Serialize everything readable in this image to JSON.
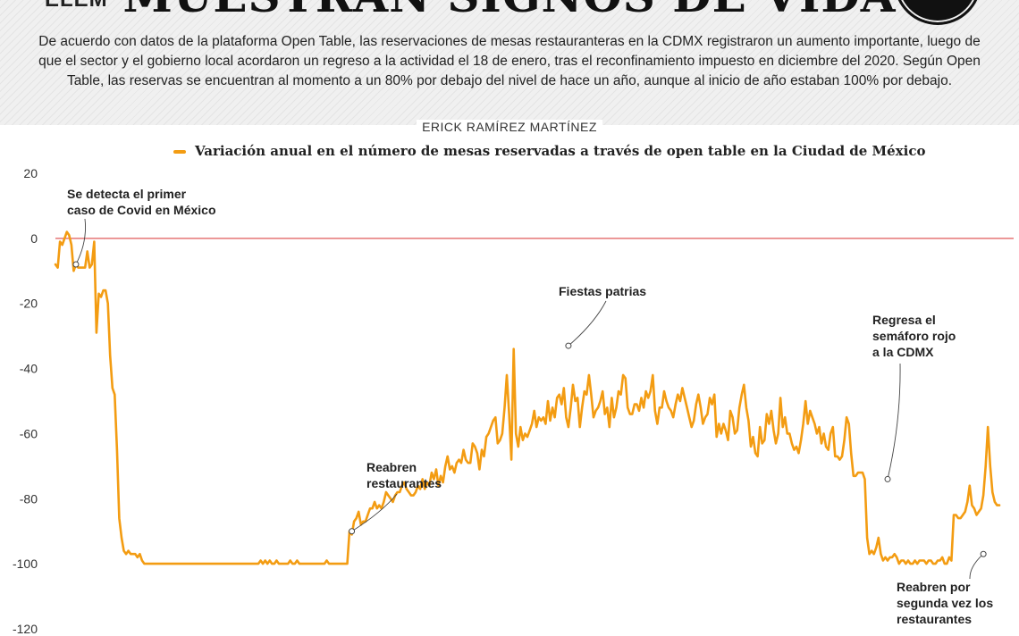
{
  "header": {
    "logo": "ELEM",
    "headline": "MUESTRAN SIGNOS DE VIDA",
    "intro": "De acuerdo con datos de la plataforma Open Table, las reservaciones de mesas restauranteras en la CDMX registraron un aumento importante, luego de que el sector y el gobierno local acordaron un regreso a la actividad el 18 de enero, tras el reconfinamiento impuesto en diciembre del 2020. Según Open Table, las reservas se encuentran al momento a un 80% por debajo del nivel de hace un año, aunque al inicio de año estaban 100% por debajo.",
    "author": "ERICK RAMÍREZ MARTÍNEZ"
  },
  "colors": {
    "line": "#f39c12",
    "zero_line": "#e05a5a",
    "background": "#ffffff",
    "header_band": "#f0f0f0"
  },
  "chart_data": {
    "type": "line",
    "title": "",
    "xlabel": "",
    "ylabel": "",
    "ylim": [
      -120,
      20
    ],
    "yticks": [
      20,
      0,
      -20,
      -40,
      -60,
      -80,
      -100,
      -120
    ],
    "grid": false,
    "reference_line": 0,
    "legend": "top",
    "series": [
      {
        "name": "Variación anual en el número de mesas reservadas a través de open table en la Ciudad de México",
        "values": [
          -8,
          -9,
          -1,
          -2,
          0,
          2,
          1,
          -2,
          -10,
          -8,
          -9,
          -9,
          -9,
          -9,
          -4,
          -9,
          -8,
          -1,
          -29,
          -17,
          -18,
          -16,
          -16,
          -20,
          -36,
          -46,
          -48,
          -65,
          -86,
          -92,
          -96,
          -97,
          -96,
          -97,
          -97,
          -97,
          -98,
          -97,
          -99,
          -100,
          -100,
          -100,
          -100,
          -100,
          -100,
          -100,
          -100,
          -100,
          -100,
          -100,
          -100,
          -100,
          -100,
          -100,
          -100,
          -100,
          -100,
          -100,
          -100,
          -100,
          -100,
          -100,
          -100,
          -100,
          -100,
          -100,
          -100,
          -100,
          -100,
          -100,
          -100,
          -100,
          -100,
          -100,
          -100,
          -100,
          -100,
          -100,
          -100,
          -100,
          -100,
          -100,
          -100,
          -100,
          -100,
          -100,
          -100,
          -100,
          -100,
          -100,
          -99,
          -100,
          -99,
          -100,
          -99,
          -100,
          -100,
          -99,
          -100,
          -100,
          -100,
          -100,
          -100,
          -99,
          -100,
          -100,
          -99,
          -100,
          -100,
          -100,
          -100,
          -100,
          -100,
          -100,
          -100,
          -100,
          -100,
          -100,
          -100,
          -99,
          -100,
          -100,
          -100,
          -100,
          -100,
          -100,
          -100,
          -100,
          -100,
          -90,
          -91,
          -87,
          -86,
          -84,
          -88,
          -87,
          -87,
          -85,
          -83,
          -83,
          -81,
          -83,
          -82,
          -83,
          -81,
          -78,
          -79,
          -80,
          -81,
          -79,
          -78,
          -78,
          -76,
          -75,
          -77,
          -78,
          -79,
          -79,
          -78,
          -76,
          -77,
          -74,
          -77,
          -75,
          -76,
          -72,
          -74,
          -71,
          -76,
          -73,
          -75,
          -70,
          -67,
          -71,
          -70,
          -72,
          -69,
          -68,
          -69,
          -65,
          -68,
          -69,
          -69,
          -63,
          -64,
          -66,
          -71,
          -65,
          -67,
          -61,
          -60,
          -58,
          -56,
          -55,
          -63,
          -62,
          -60,
          -52,
          -42,
          -54,
          -68,
          -34,
          -60,
          -64,
          -58,
          -62,
          -60,
          -61,
          -59,
          -57,
          -53,
          -58,
          -55,
          -56,
          -55,
          -57,
          -50,
          -56,
          -52,
          -55,
          -49,
          -48,
          -51,
          -46,
          -55,
          -58,
          -52,
          -45,
          -50,
          -49,
          -58,
          -52,
          -47,
          -48,
          -42,
          -48,
          -55,
          -53,
          -52,
          -50,
          -47,
          -54,
          -52,
          -58,
          -49,
          -55,
          -52,
          -47,
          -48,
          -42,
          -43,
          -52,
          -54,
          -54,
          -51,
          -51,
          -53,
          -49,
          -52,
          -47,
          -49,
          -47,
          -42,
          -53,
          -57,
          -52,
          -52,
          -47,
          -50,
          -52,
          -53,
          -55,
          -51,
          -48,
          -50,
          -46,
          -49,
          -52,
          -55,
          -58,
          -56,
          -51,
          -48,
          -52,
          -57,
          -55,
          -54,
          -49,
          -51,
          -48,
          -61,
          -57,
          -60,
          -57,
          -59,
          -62,
          -53,
          -55,
          -60,
          -59,
          -52,
          -48,
          -45,
          -52,
          -56,
          -64,
          -61,
          -66,
          -67,
          -58,
          -63,
          -62,
          -54,
          -57,
          -53,
          -59,
          -63,
          -60,
          -49,
          -58,
          -55,
          -60,
          -60,
          -63,
          -65,
          -64,
          -66,
          -62,
          -57,
          -50,
          -57,
          -53,
          -55,
          -57,
          -60,
          -58,
          -63,
          -60,
          -64,
          -65,
          -60,
          -58,
          -67,
          -67,
          -68,
          -67,
          -62,
          -55,
          -57,
          -66,
          -73,
          -73,
          -72,
          -72,
          -72,
          -74,
          -92,
          -97,
          -96,
          -97,
          -95,
          -92,
          -97,
          -99,
          -98,
          -99,
          -98,
          -98,
          -97,
          -98,
          -100,
          -99,
          -99,
          -100,
          -99,
          -100,
          -100,
          -99,
          -100,
          -99,
          -99,
          -99,
          -100,
          -99,
          -99,
          -100,
          -100,
          -99,
          -99,
          -98,
          -100,
          -100,
          -98,
          -99,
          -85,
          -85,
          -86,
          -86,
          -85,
          -84,
          -81,
          -76,
          -82,
          -83,
          -85,
          -84,
          -83,
          -79,
          -70,
          -58,
          -70,
          -78,
          -81,
          -82,
          -82
        ]
      }
    ],
    "annotations": [
      {
        "text": [
          "Se detecta el primer",
          "caso de Covid en México"
        ],
        "index": 9,
        "value": -8
      },
      {
        "text": [
          "Reabren",
          "restaurantes"
        ],
        "index": 130,
        "value": -90
      },
      {
        "text": [
          "Fiestas patrias"
        ],
        "index": 225,
        "value": -33
      },
      {
        "text": [
          "Regresa el",
          "semáforo rojo",
          "a la CDMX"
        ],
        "index": 365,
        "value": -74
      },
      {
        "text": [
          "Reabren por",
          "segunda vez los",
          "restaurantes"
        ],
        "index": 407,
        "value": -97
      }
    ]
  }
}
